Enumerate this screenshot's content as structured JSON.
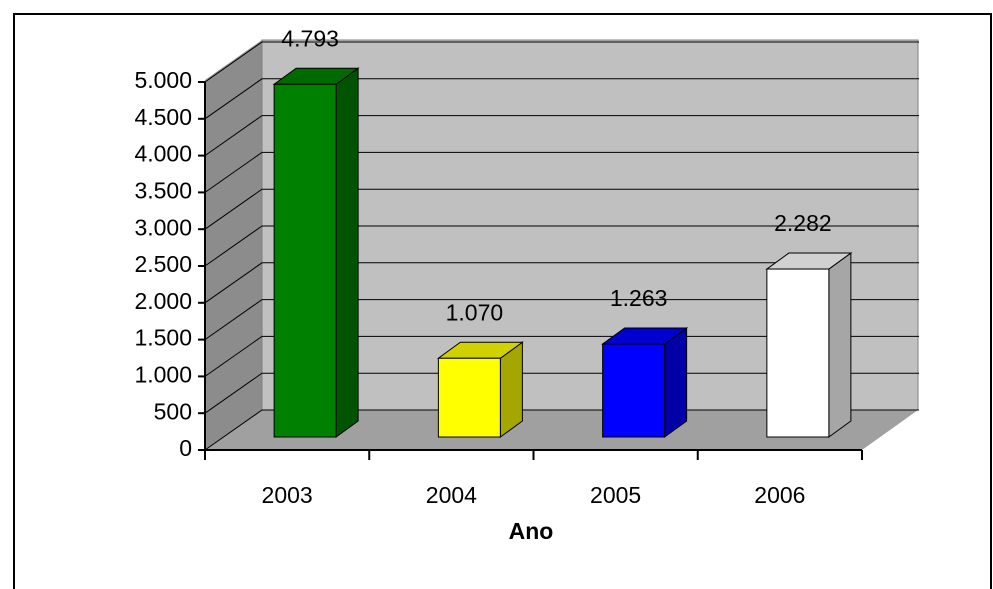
{
  "chart_data": {
    "type": "bar3d",
    "xlabel": "Ano",
    "categories": [
      "2003",
      "2004",
      "2005",
      "2006"
    ],
    "values": [
      4793,
      1070,
      1263,
      2282
    ],
    "value_labels": [
      "4.793",
      "1.070",
      "1.263",
      "2.282"
    ],
    "colors": [
      "#008000",
      "#ffff00",
      "#0000ff",
      "#ffffff"
    ],
    "ylim": [
      0,
      5000
    ],
    "yticks": [
      0,
      500,
      {
        "value": 1000,
        "label": "1.000"
      },
      {
        "value": 1500,
        "label": "1.500"
      },
      {
        "value": 2000,
        "label": "2.000"
      },
      {
        "value": 2500,
        "label": "2.500"
      },
      {
        "value": 3000,
        "label": "3.000"
      },
      {
        "value": 3500,
        "label": "3.500"
      },
      {
        "value": 4000,
        "label": "4.000"
      },
      {
        "value": 4500,
        "label": "4.500"
      },
      {
        "value": 5000,
        "label": "5.000"
      }
    ],
    "grid": true
  }
}
